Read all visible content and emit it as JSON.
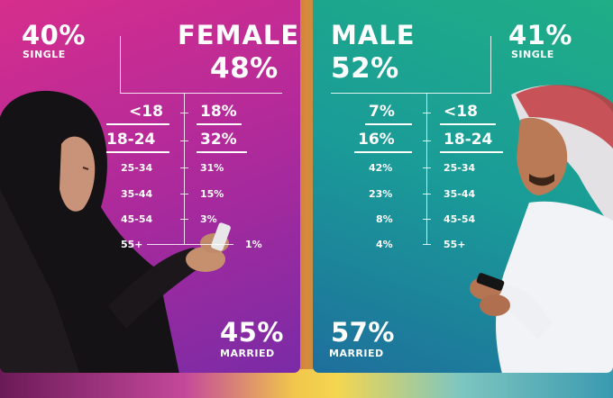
{
  "female": {
    "single_percent": "40%",
    "single_label": "SINGLE",
    "title": "FEMALE",
    "percent": "48%",
    "married_percent": "45%",
    "married_label": "MARRIED",
    "age_groups": [
      {
        "age": "<18",
        "value": "18%"
      },
      {
        "age": "18-24",
        "value": "32%"
      },
      {
        "age": "25-34",
        "value": "31%"
      },
      {
        "age": "35-44",
        "value": "15%"
      },
      {
        "age": "45-54",
        "value": "3%"
      },
      {
        "age": "55+",
        "value": "1%"
      }
    ]
  },
  "male": {
    "title": "MALE",
    "percent": "52%",
    "single_percent": "41%",
    "single_label": "SINGLE",
    "married_percent": "57%",
    "married_label": "MARRIED",
    "age_groups": [
      {
        "age": "<18",
        "value": "7%"
      },
      {
        "age": "18-24",
        "value": "16%"
      },
      {
        "age": "25-34",
        "value": "42%"
      },
      {
        "age": "35-44",
        "value": "23%"
      },
      {
        "age": "45-54",
        "value": "8%"
      },
      {
        "age": "55+",
        "value": "4%"
      }
    ]
  },
  "colors": {
    "female_panel": "#c42d93",
    "male_panel": "#1a9b98"
  }
}
